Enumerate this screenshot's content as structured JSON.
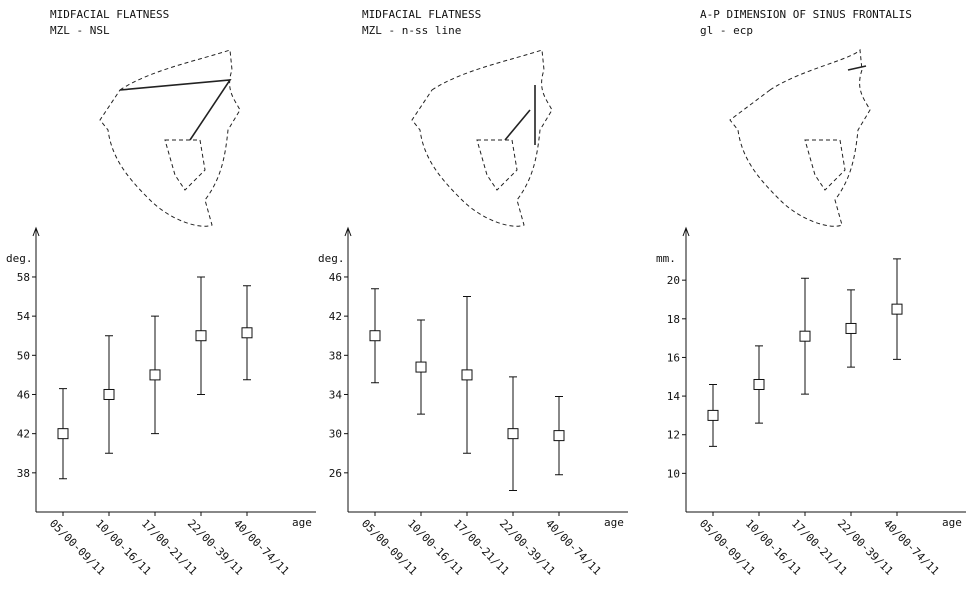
{
  "chart_data": [
    {
      "type": "errorbar",
      "title": "MIDFACIAL FLATNESS",
      "subtitle": "MZL - NSL",
      "y_label": "deg.",
      "x_label": "age",
      "categories": [
        "05/00-09/11",
        "10/00-16/11",
        "17/00-21/11",
        "22/00-39/11",
        "40/00-74/11"
      ],
      "values": [
        42,
        46,
        48,
        52,
        52.3
      ],
      "errors": [
        4.6,
        6,
        6,
        6,
        4.8
      ],
      "ylim": [
        34,
        63
      ],
      "yticks": [
        38,
        42,
        46,
        50,
        54,
        58
      ]
    },
    {
      "type": "errorbar",
      "title": "MIDFACIAL FLATNESS",
      "subtitle": "MZL - n-ss line",
      "y_label": "deg.",
      "x_label": "age",
      "categories": [
        "05/00-09/11",
        "10/00-16/11",
        "17/00-21/11",
        "22/00-39/11",
        "40/00-74/11"
      ],
      "values": [
        40,
        36.8,
        36,
        30,
        29.8
      ],
      "errors": [
        4.8,
        4.8,
        8,
        5.8,
        4
      ],
      "ylim": [
        22,
        51
      ],
      "yticks": [
        26,
        30,
        34,
        38,
        42,
        46
      ]
    },
    {
      "type": "errorbar",
      "title": "A-P DIMENSION OF SINUS FRONTALIS",
      "subtitle": "gl - ecp",
      "y_label": "mm.",
      "x_label": "age",
      "categories": [
        "05/00-09/11",
        "10/00-16/11",
        "17/00-21/11",
        "22/00-39/11",
        "40/00-74/11"
      ],
      "values": [
        13,
        14.6,
        17.1,
        17.5,
        18.5
      ],
      "errors": [
        1.6,
        2,
        3,
        2,
        2.6
      ],
      "ylim": [
        8,
        22.7
      ],
      "yticks": [
        10,
        12,
        14,
        16,
        18,
        20
      ]
    }
  ]
}
